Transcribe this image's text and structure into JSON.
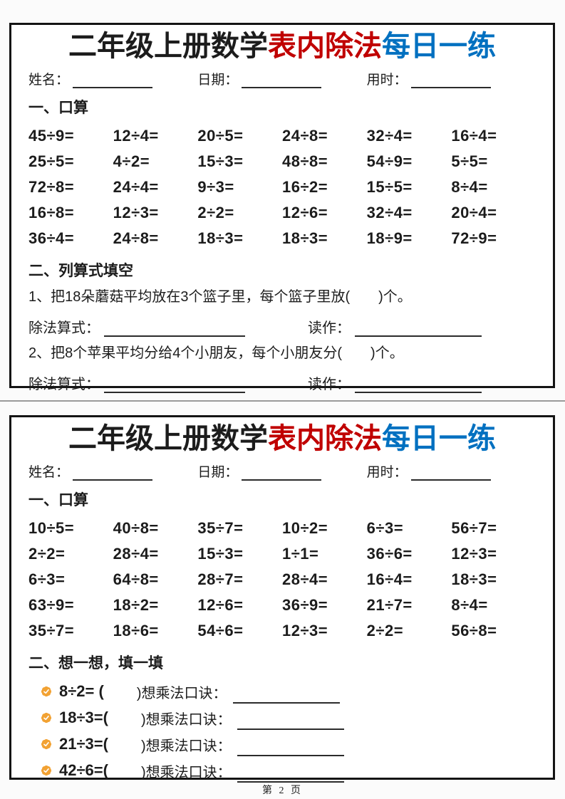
{
  "colors": {
    "title_red": "#C00000",
    "title_blue": "#0070C0",
    "seal_orange": "#F2A233",
    "border_black": "#141414"
  },
  "title": {
    "part_black": "二年级上册数学",
    "part_red": "表内除法",
    "part_blue": "每日一练"
  },
  "meta": {
    "name_label": "姓名：",
    "date_label": "日期：",
    "time_label": "用时："
  },
  "page1": {
    "section1_heading": "一、口算",
    "oral_rows": [
      [
        "45÷9=",
        "12÷4=",
        "20÷5=",
        "24÷8=",
        "32÷4=",
        "16÷4="
      ],
      [
        "25÷5=",
        "4÷2=",
        "15÷3=",
        "48÷8=",
        "54÷9=",
        "5÷5="
      ],
      [
        "72÷8=",
        "24÷4=",
        "9÷3=",
        "16÷2=",
        "15÷5=",
        "8÷4="
      ],
      [
        "16÷8=",
        "12÷3=",
        "2÷2=",
        "12÷6=",
        "32÷4=",
        "20÷4="
      ],
      [
        "36÷4=",
        "24÷8=",
        "18÷3=",
        "18÷3=",
        "18÷9=",
        "72÷9="
      ]
    ],
    "section2_heading": "二、列算式填空",
    "problems": [
      {
        "text": "1、把18朵蘑菇平均放在3个篮子里，每个篮子里放(　　)个。",
        "eq_label": "除法算式：",
        "read_label": "读作："
      },
      {
        "text": "2、把8个苹果平均分给4个小朋友，每个小朋友分(　　)个。",
        "eq_label": "除法算式：",
        "read_label": "读作："
      }
    ]
  },
  "page2": {
    "section1_heading": "一、口算",
    "oral_rows": [
      [
        "10÷5=",
        "40÷8=",
        "35÷7=",
        "10÷2=",
        "6÷3=",
        "56÷7="
      ],
      [
        "2÷2=",
        "28÷4=",
        "15÷3=",
        "1÷1=",
        "36÷6=",
        "12÷3="
      ],
      [
        "6÷3=",
        "64÷8=",
        "28÷7=",
        "28÷4=",
        "16÷4=",
        "18÷3="
      ],
      [
        "63÷9=",
        "18÷2=",
        "12÷6=",
        "36÷9=",
        "21÷7=",
        "8÷4="
      ],
      [
        "35÷7=",
        "18÷6=",
        "54÷6=",
        "12÷3=",
        "2÷2=",
        "56÷8="
      ]
    ],
    "section2_heading": "二、想一想，填一填",
    "fill_items": [
      {
        "expr": "8÷2= (",
        "suffix": ")想乘法口诀："
      },
      {
        "expr": "18÷3=(",
        "suffix": ")想乘法口诀："
      },
      {
        "expr": "21÷3=(",
        "suffix": ")想乘法口诀："
      },
      {
        "expr": "42÷6=(",
        "suffix": ")想乘法口诀："
      }
    ]
  },
  "footer": {
    "page_number": "第 2 页"
  }
}
